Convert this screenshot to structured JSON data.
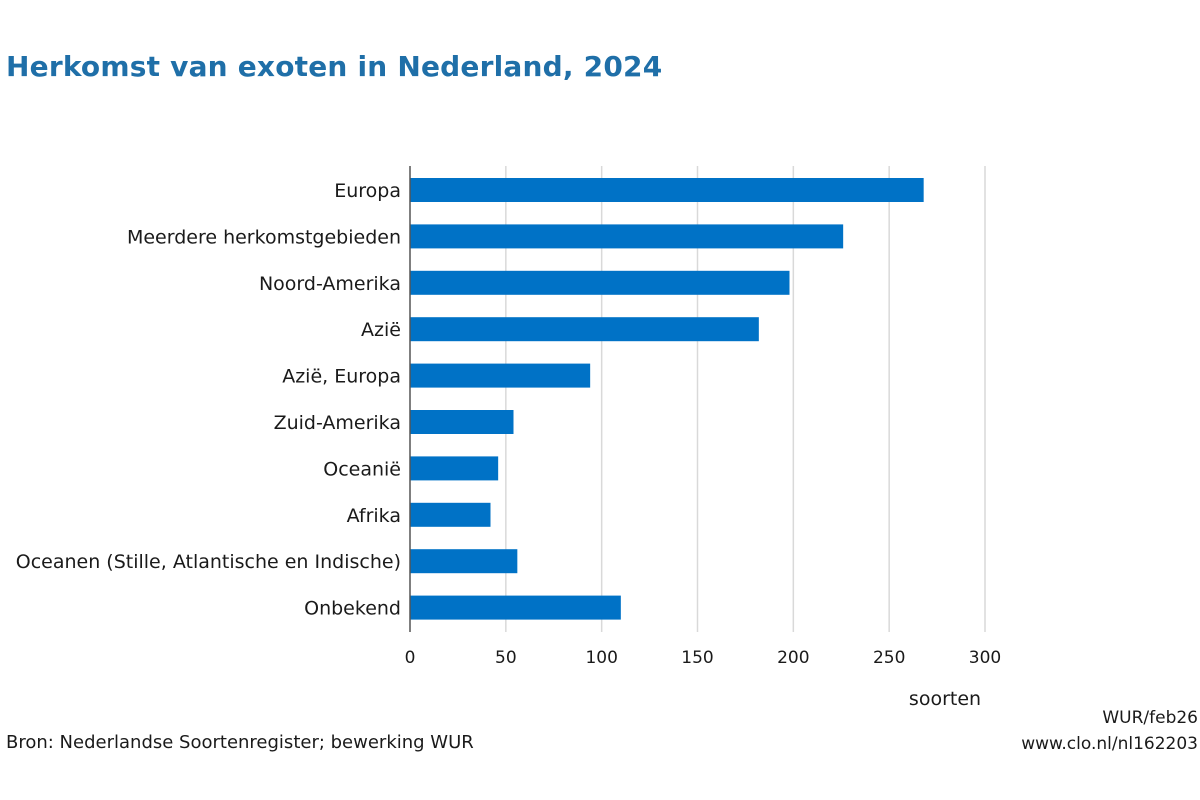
{
  "title": "Herkomst van exoten in Nederland, 2024",
  "source": "Bron: Nederlandse Soortenregister; bewerking WUR",
  "credit_line1": "WUR/feb26",
  "credit_line2": "www.clo.nl/nl162203",
  "chart_data": {
    "type": "bar",
    "orientation": "horizontal",
    "categories": [
      "Europa",
      "Meerdere herkomstgebieden",
      "Noord-Amerika",
      "Azië",
      "Azië, Europa",
      "Zuid-Amerika",
      "Oceanië",
      "Afrika",
      "Oceanen (Stille, Atlantische en Indische)",
      "Onbekend"
    ],
    "values": [
      268,
      226,
      198,
      182,
      94,
      54,
      46,
      42,
      56,
      110
    ],
    "xlabel": "soorten",
    "xlim": [
      0,
      300
    ],
    "xticks": [
      0,
      50,
      100,
      150,
      200,
      250,
      300
    ],
    "grid": true,
    "bar_color": "#0072c6",
    "grid_color": "#d9d9d9",
    "title_color": "#1f6fa8"
  }
}
